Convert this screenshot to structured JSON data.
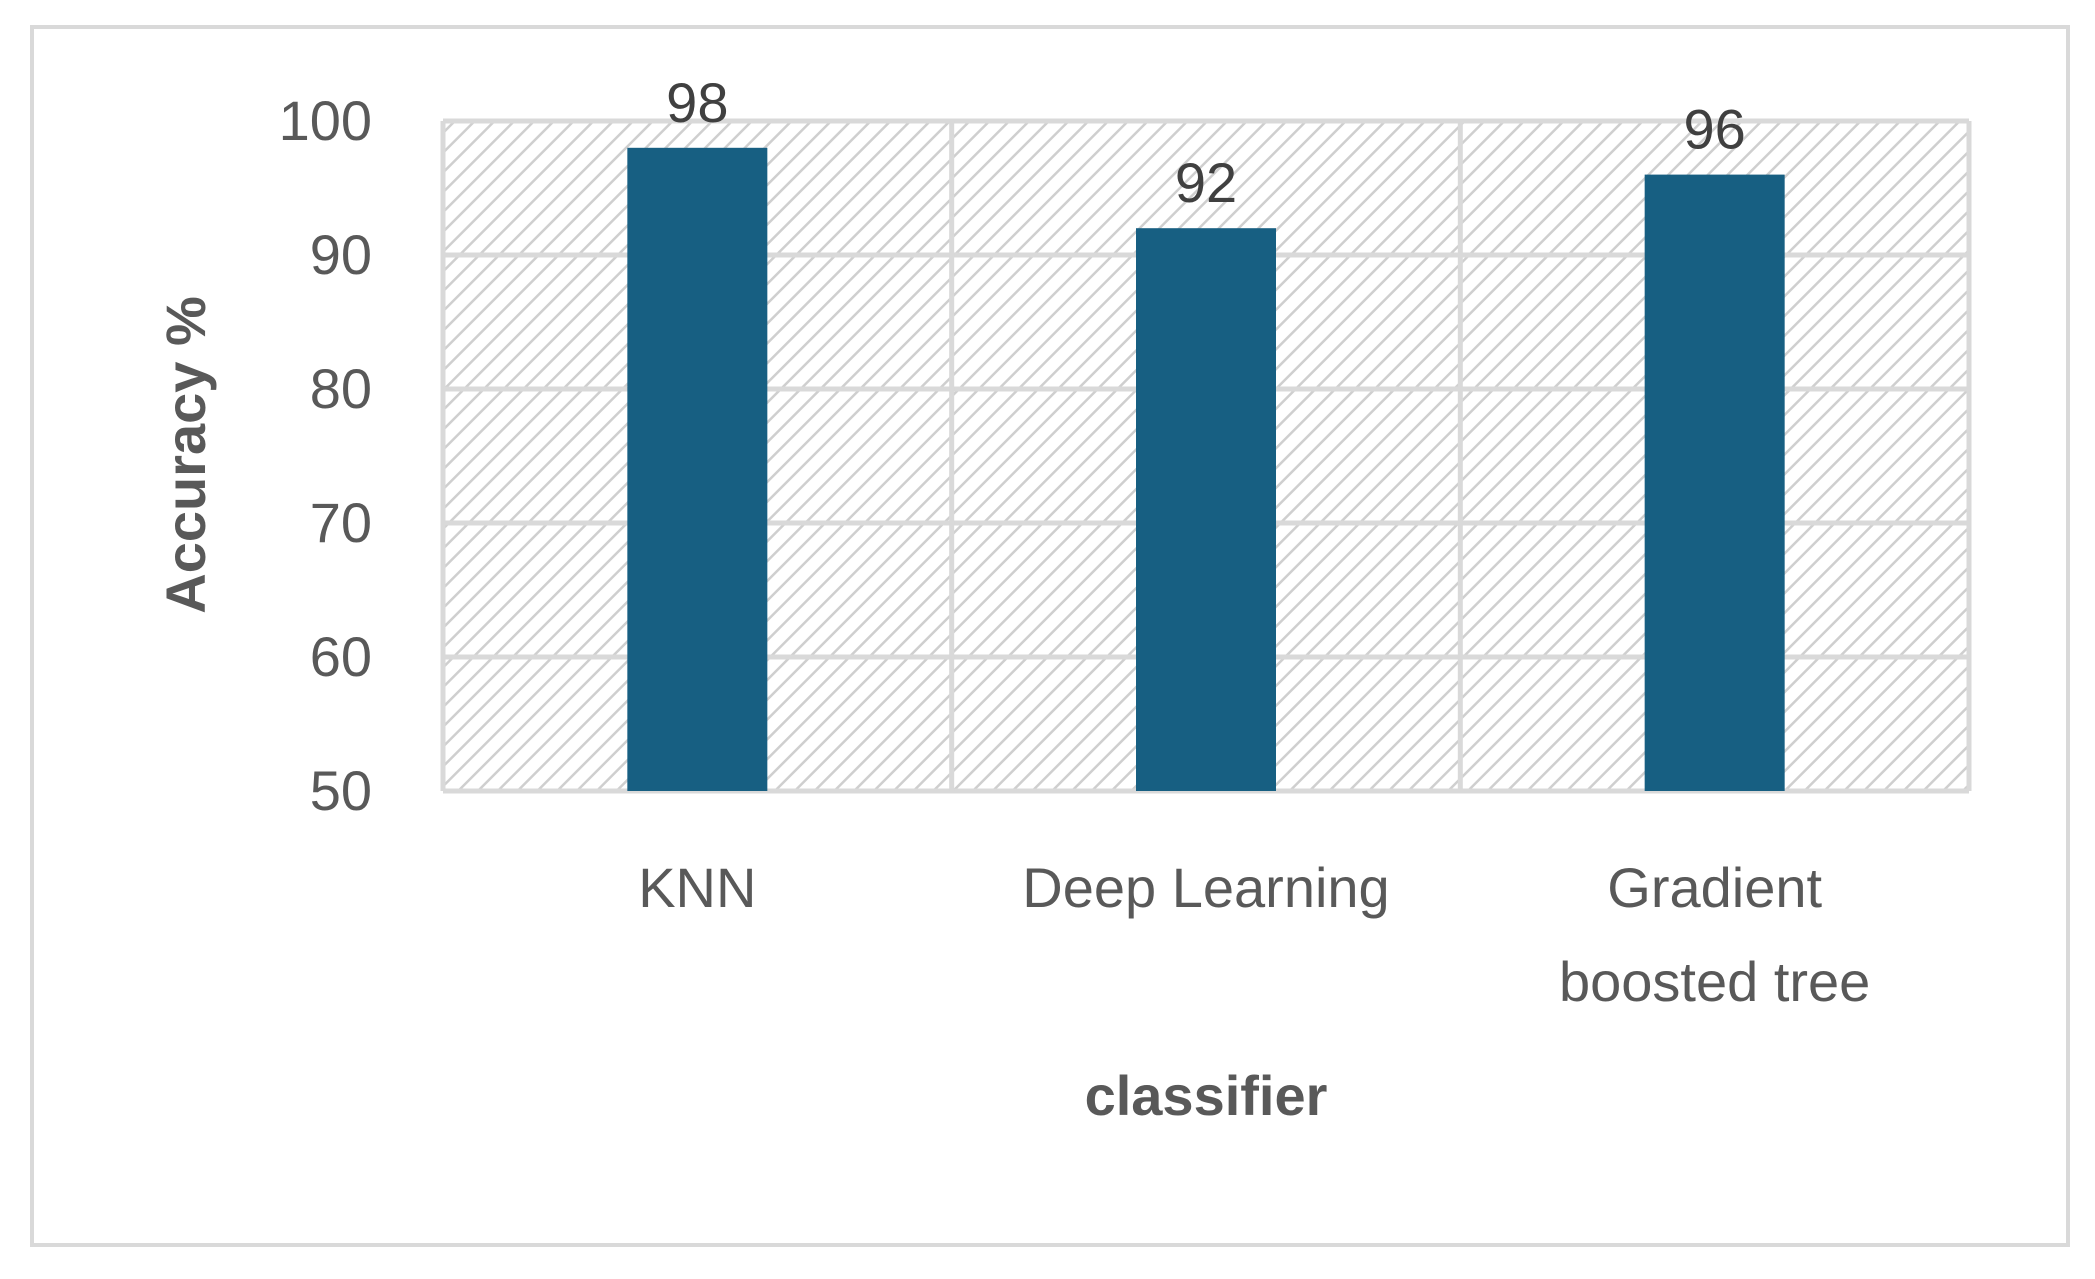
{
  "chart_data": {
    "type": "bar",
    "title": "",
    "xlabel": "classifier",
    "ylabel": "Accuracy %",
    "categories": [
      [
        "KNN"
      ],
      [
        "Deep Learning"
      ],
      [
        "Gradient",
        "boosted tree"
      ]
    ],
    "series": [
      {
        "values": [
          98,
          92,
          96
        ]
      }
    ],
    "data_labels": [
      "98",
      "92",
      "96"
    ],
    "ylim": [
      50,
      100
    ],
    "yticks": [
      50,
      60,
      70,
      80,
      90,
      100
    ],
    "grid": true,
    "legend": "none",
    "colors": {
      "bar": "#175f82",
      "grid": "#d9d9d9",
      "hatch": "#cfcfcf",
      "text": "#595959",
      "frame": "#d9d9d9"
    }
  }
}
